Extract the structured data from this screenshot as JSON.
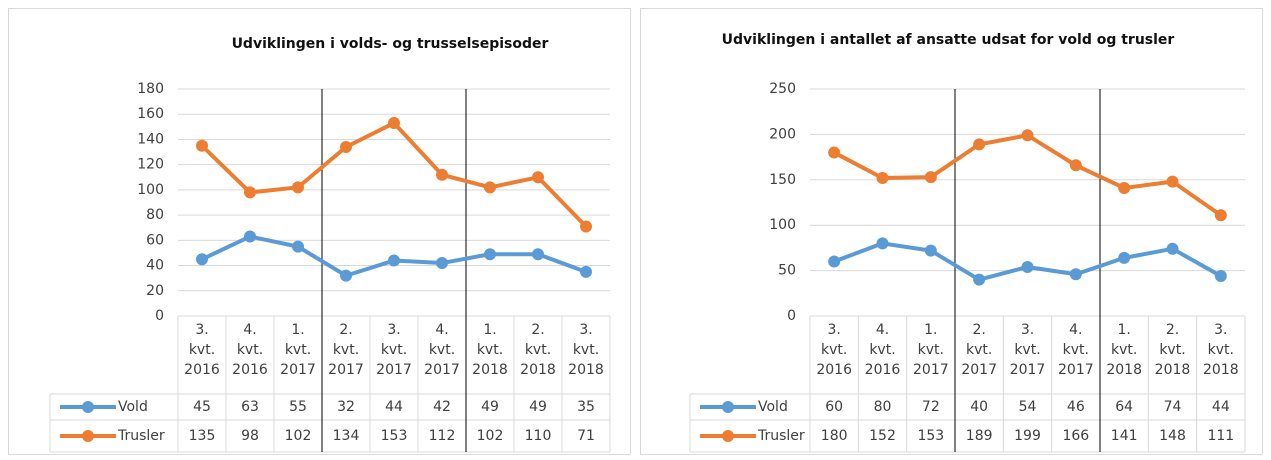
{
  "chart_data": [
    {
      "type": "line",
      "title": "Udviklingen i volds- og trusselsepisoder",
      "categories": [
        [
          "3.",
          "kvt.",
          "2016"
        ],
        [
          "4.",
          "kvt.",
          "2016"
        ],
        [
          "1.",
          "kvt.",
          "2017"
        ],
        [
          "2.",
          "kvt.",
          "2017"
        ],
        [
          "3.",
          "kvt.",
          "2017"
        ],
        [
          "4.",
          "kvt.",
          "2017"
        ],
        [
          "1.",
          "kvt.",
          "2018"
        ],
        [
          "2.",
          "kvt.",
          "2018"
        ],
        [
          "3.",
          "kvt.",
          "2018"
        ]
      ],
      "series": [
        {
          "name": "Vold",
          "color": "#5b9bd5",
          "values": [
            45,
            63,
            55,
            32,
            44,
            42,
            49,
            49,
            35
          ]
        },
        {
          "name": "Trusler",
          "color": "#ed7d31",
          "values": [
            135,
            98,
            102,
            134,
            153,
            112,
            102,
            110,
            71
          ]
        }
      ],
      "ylim": [
        0,
        180
      ],
      "yticks": [
        0,
        20,
        40,
        60,
        80,
        100,
        120,
        140,
        160,
        180
      ],
      "grid": true
    },
    {
      "type": "line",
      "title": "Udviklingen i antallet af ansatte udsat for vold og trusler",
      "categories": [
        [
          "3.",
          "kvt.",
          "2016"
        ],
        [
          "4.",
          "kvt.",
          "2016"
        ],
        [
          "1.",
          "kvt.",
          "2017"
        ],
        [
          "2.",
          "kvt.",
          "2017"
        ],
        [
          "3.",
          "kvt.",
          "2017"
        ],
        [
          "4.",
          "kvt.",
          "2017"
        ],
        [
          "1.",
          "kvt.",
          "2018"
        ],
        [
          "2.",
          "kvt.",
          "2018"
        ],
        [
          "3.",
          "kvt.",
          "2018"
        ]
      ],
      "series": [
        {
          "name": "Vold",
          "color": "#5b9bd5",
          "values": [
            60,
            80,
            72,
            40,
            54,
            46,
            64,
            74,
            44
          ]
        },
        {
          "name": "Trusler",
          "color": "#ed7d31",
          "values": [
            180,
            152,
            153,
            189,
            199,
            166,
            141,
            148,
            111
          ]
        }
      ],
      "ylim": [
        0,
        250
      ],
      "yticks": [
        0,
        50,
        100,
        150,
        200,
        250
      ],
      "grid": true
    }
  ]
}
